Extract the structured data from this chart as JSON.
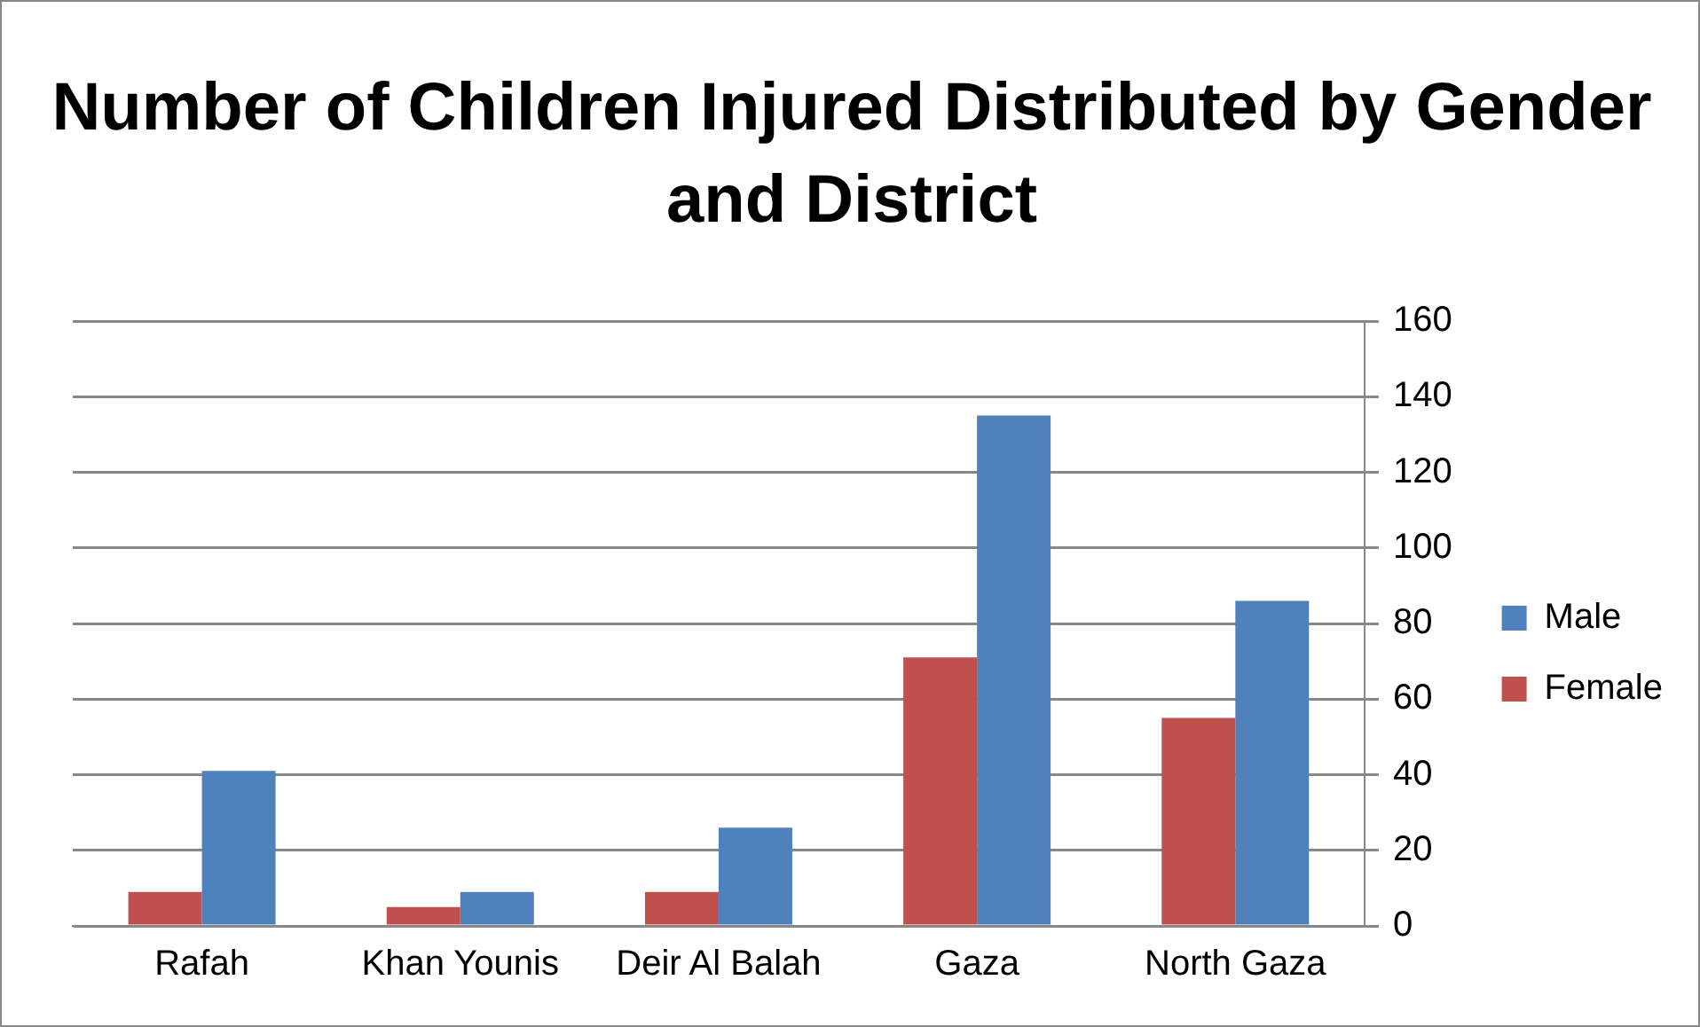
{
  "chart_data": {
    "type": "bar",
    "title": "Number of Children Injured Distributed by Gender and District",
    "categories": [
      "Rafah",
      "Khan Younis",
      "Deir Al Balah",
      "Gaza",
      "North Gaza"
    ],
    "series": [
      {
        "name": "Female",
        "color": "#c0504d",
        "values": [
          9,
          5,
          9,
          71,
          55
        ]
      },
      {
        "name": "Male",
        "color": "#4f81bd",
        "values": [
          41,
          9,
          26,
          135,
          86
        ]
      }
    ],
    "ylim": [
      0,
      160
    ],
    "yticks": [
      0,
      20,
      40,
      60,
      80,
      100,
      120,
      140,
      160
    ],
    "grid": "y",
    "legend": "right"
  }
}
